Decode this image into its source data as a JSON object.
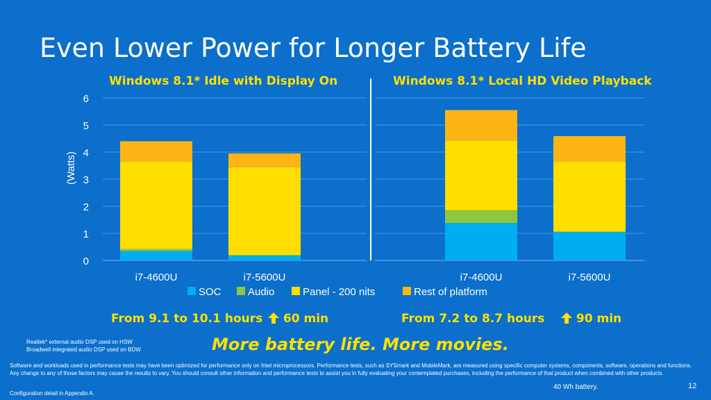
{
  "slide": {
    "title": "Even Lower Power for Longer Battery Life",
    "page_number": "12",
    "tagline": "More battery life.  More movies.",
    "battery_note": "40 Wh battery.",
    "appendix_note": "Configuration detail in Appendix A.",
    "audio_notes": [
      "Realtek* external audio DSP used on HSW",
      "Broadwell integrated audio DSP used on BDW"
    ],
    "disclaimer": "Software and workloads used in performance tests may have been optimized for performance only on Intel microprocessors.  Performance tests, such as SYSmark and MobileMark, are measured using specific computer systems, components, software, operations and functions. Any change to any of those factors may cause the results to vary. You should consult other information and performance tests to assist you in fully evaluating your contemplated purchases, including the performance of that product when combined with other products.",
    "left_summary": {
      "text": "From 9.1 to 10.1 hours",
      "gain": "60 min"
    },
    "right_summary": {
      "text": "From 7.2 to 8.7 hours",
      "gain": "90 min"
    }
  },
  "colors": {
    "background": "#0B6FCB",
    "SOC": "#00AEEF",
    "Audio": "#8DC63F",
    "Panel - 200 nits": "#FFDE00",
    "Rest of platform": "#FDB515",
    "highlight_text": "#FFE000"
  },
  "chart_data": {
    "type": "bar",
    "stacked": true,
    "ylabel": "(Watts)",
    "ylim": [
      0,
      6
    ],
    "yticks": [
      0,
      1,
      2,
      3,
      4,
      5,
      6
    ],
    "grid": true,
    "legend_position": "bottom",
    "series_names": [
      "SOC",
      "Audio",
      "Panel - 200 nits",
      "Rest of platform"
    ],
    "panels": [
      {
        "title": "Windows 8.1* Idle with Display On",
        "categories": [
          "i7-4600U",
          "i7-5600U"
        ],
        "series": [
          {
            "name": "SOC",
            "values": [
              0.35,
              0.18
            ]
          },
          {
            "name": "Audio",
            "values": [
              0.07,
              0.02
            ]
          },
          {
            "name": "Panel - 200 nits",
            "values": [
              3.23,
              3.24
            ]
          },
          {
            "name": "Rest of platform",
            "values": [
              0.75,
              0.51
            ]
          }
        ]
      },
      {
        "title": "Windows 8.1* Local HD Video Playback",
        "categories": [
          "i7-4600U",
          "i7-5600U"
        ],
        "series": [
          {
            "name": "SOC",
            "values": [
              1.38,
              1.06
            ]
          },
          {
            "name": "Audio",
            "values": [
              0.47,
              0.0
            ]
          },
          {
            "name": "Panel - 200 nits",
            "values": [
              2.57,
              2.59
            ]
          },
          {
            "name": "Rest of platform",
            "values": [
              1.13,
              0.94
            ]
          }
        ]
      }
    ]
  }
}
